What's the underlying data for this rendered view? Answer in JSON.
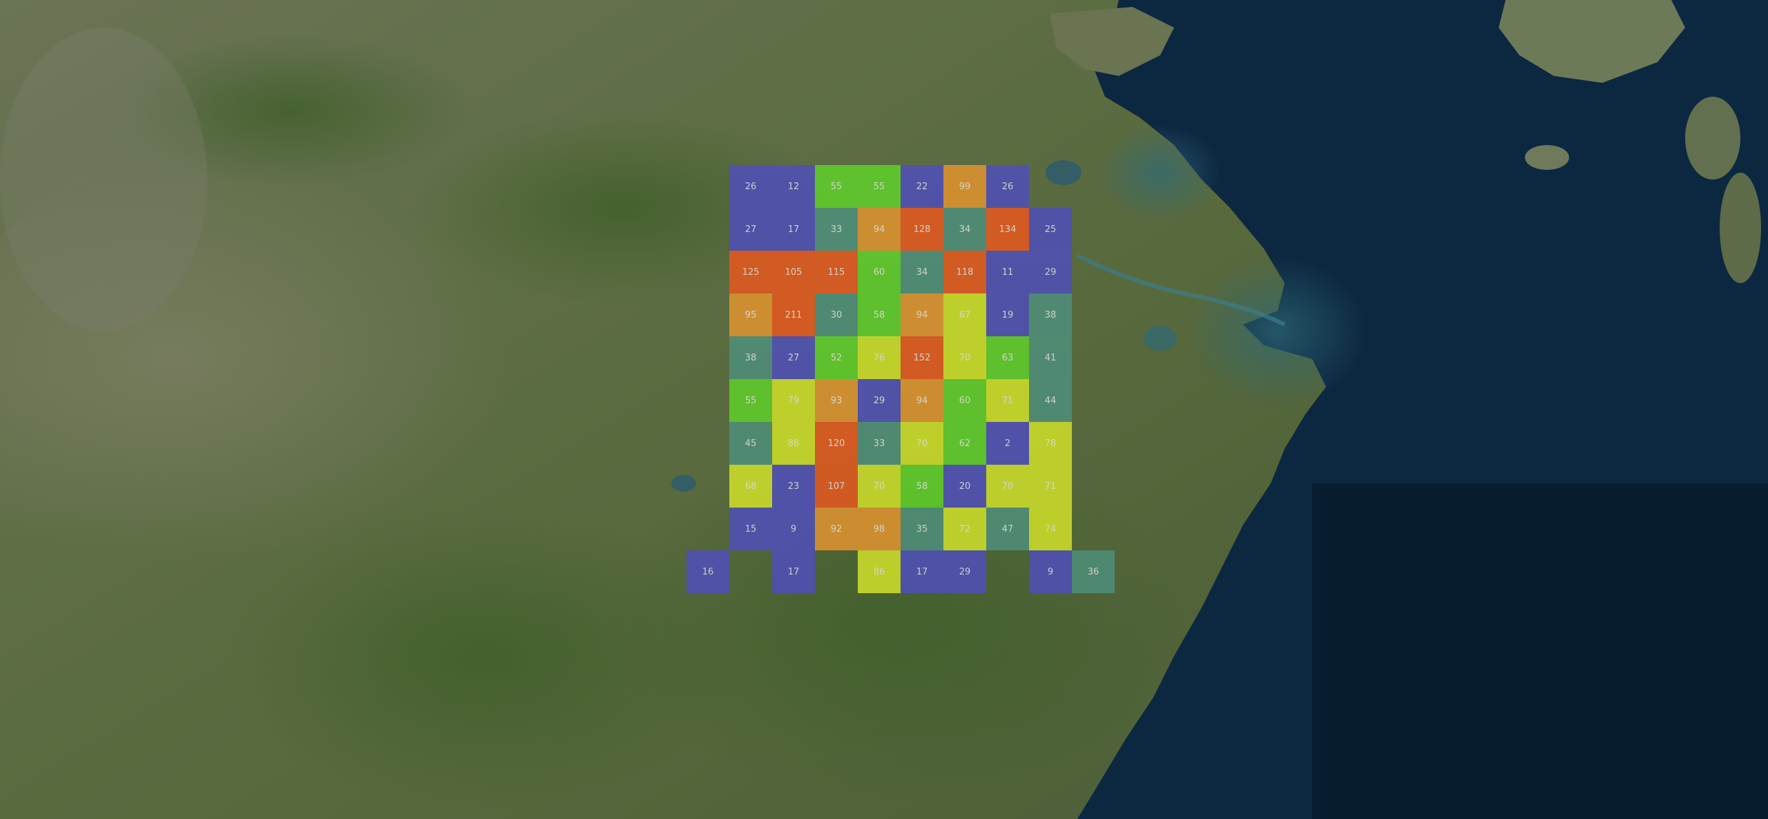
{
  "map": {
    "basemap": "satellite-imagery",
    "colors": {
      "low": "#4f4fb8",
      "mid_low": "#4f8f7a",
      "mid": "#5fcf2a",
      "mid_high": "#cfe02a",
      "high": "#e09430",
      "very_high": "#e5591e"
    }
  },
  "grid": {
    "rows": [
      [
        26,
        12,
        55,
        55,
        22,
        99,
        26,
        null,
        null
      ],
      [
        27,
        17,
        33,
        94,
        128,
        34,
        134,
        25,
        null
      ],
      [
        125,
        105,
        115,
        60,
        34,
        118,
        11,
        29,
        null
      ],
      [
        95,
        211,
        30,
        58,
        94,
        67,
        19,
        38,
        null
      ],
      [
        38,
        27,
        52,
        76,
        152,
        70,
        63,
        41,
        null
      ],
      [
        55,
        79,
        93,
        29,
        94,
        60,
        71,
        44,
        null
      ],
      [
        45,
        88,
        120,
        33,
        70,
        62,
        2,
        78,
        null
      ],
      [
        68,
        23,
        107,
        70,
        58,
        20,
        70,
        71,
        null
      ],
      [
        15,
        9,
        92,
        98,
        35,
        72,
        47,
        74,
        null
      ],
      [
        null,
        17,
        null,
        86,
        17,
        29,
        null,
        9,
        36
      ]
    ],
    "extra_cells": [
      {
        "row": 9,
        "col": -1,
        "value": 16
      }
    ]
  }
}
